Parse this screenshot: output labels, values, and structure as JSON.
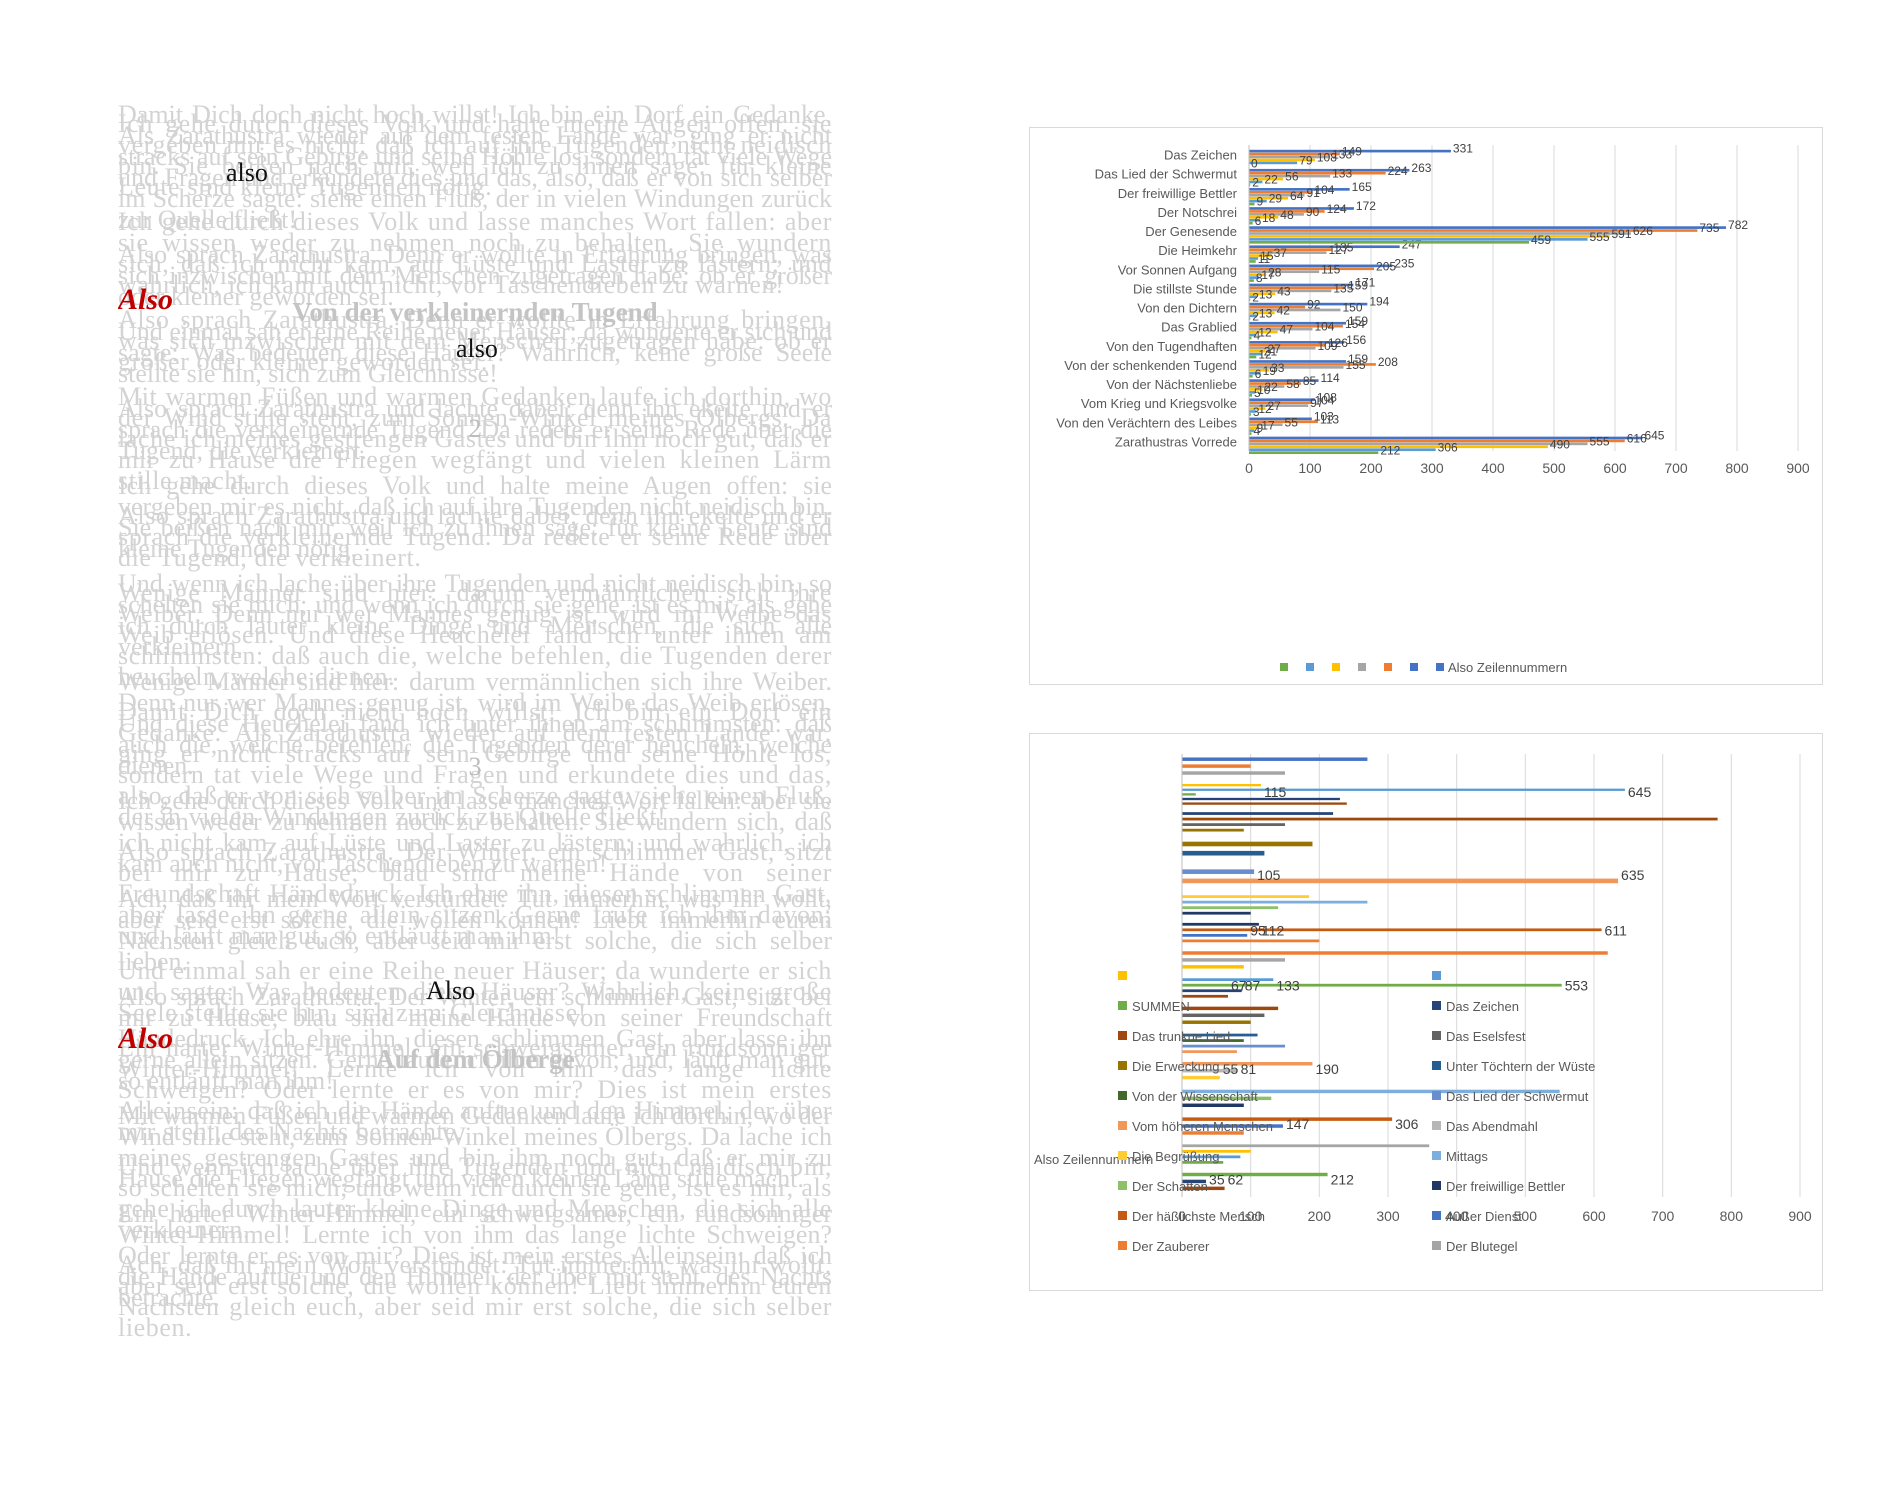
{
  "text_column": {
    "markers": [
      {
        "text": "also",
        "style": "black"
      },
      {
        "text": "Also",
        "style": "red"
      },
      {
        "text": "Von der verkleinernden Tugend",
        "style": "heading"
      },
      {
        "text": "also",
        "style": "black"
      },
      {
        "text": "2",
        "style": "num"
      },
      {
        "text": "3",
        "style": "num"
      },
      {
        "text": "Also",
        "style": "black"
      },
      {
        "text": "Also",
        "style": "red"
      },
      {
        "text": "Auf dem Ölberge",
        "style": "heading"
      }
    ],
    "paragraphs": [
      "Damit Dich doch nicht hoch willst! Ich bin ein Dorf ein Gedanke. Als Zarathustra wieder auf dem festen Lande war, ging er nicht stracks auf sein Gebirge und seine Höhle los, sondern tat viele Wege und Fragen und erkundete dies und das, also, daß er von sich selber im Scherze sagte: siehe einen Fluß, der in vielen Windungen zurück zur Quelle fließt!",
      "Also sprach Zarathustra. Denn er wollte in Erfahrung bringen, was sich inzwischen mit dem Menschen zugetragen habe: ob er größer oder kleiner geworden sei.",
      "Und einmal sah er eine Reihe neuer Häuser; da wunderte er sich und sagte: Was bedeuten diese Häuser? Wahrlich, keine große Seele stellte sie hin, sich zum Gleichnisse!",
      "Also sprach Zarathustra und lachte dabei; denn ihn ekelte und er sprach die verkleinernde Tugend. Da redete er seine Rede über die Tugend, die verkleinert.",
      "Ich gehe durch dieses Volk und halte meine Augen offen: sie vergeben mir es nicht, daß ich auf ihre Tugenden nicht neidisch bin. Sie beißen nach mir, weil ich zu ihnen sage: für kleine Leute sind kleine Tugenden nötig.",
      "Und wenn ich lache über ihre Tugenden und nicht neidisch bin, so schelten sie mich; und wenn ich durch sie gehe, ist es mir, als gehe ich durch lauter kleine Dinge und Menschen, die sich alle verkleinern.",
      "Wenige Männer sind hier: darum vermännlichen sich ihre Weiber. Denn nur wer Mannes genug ist, wird im Weibe das Weib erlösen. Und diese Heuchelei fand ich unter ihnen am schlimmsten: daß auch die, welche befehlen, die Tugenden derer heucheln, welche dienen.",
      "Ich gehe durch dieses Volk und lasse manches Wort fallen: aber sie wissen weder zu nehmen noch zu behalten. Sie wundern sich, daß ich nicht kam, auf Lüste und Laster zu lästern; und wahrlich, ich kam auch nicht, vor Taschendieben zu warnen!",
      "Ach, daß ihr mein Wort verstündet: Tut immerhin, was ihr wollt, aber seid erst solche, die wollen können! Liebt immerhin euren Nächsten gleich euch, aber seid mir erst solche, die sich selber lieben.",
      "Also sprach Zarathustra. Der Winter, ein schlimmer Gast, sitzt bei mir zu Hause; blau sind meine Hände von seiner Freundschaft Händedruck. Ich ehre ihn, diesen schlimmen Gast, aber lasse ihn gerne allein sitzen. Gerne laufe ich ihm davon; und, läuft man gut, so entläuft man ihm!",
      "Mit warmen Füßen und warmen Gedanken laufe ich dorthin, wo der Wind stille steht, zum Sonnen-Winkel meines Ölbergs. Da lache ich meines gestrengen Gastes und bin ihm noch gut, daß er mir zu Hause die Fliegen wegfängt und vielen kleinen Lärm stille macht.",
      "Ein harter Winter-Himmel, ein schweigsamer, ein rundsonniger Winter-Himmel! Lernte ich von ihm das lange lichte Schweigen? Oder lernte er es von mir? Dies ist mein erstes Alleinsein: daß ich die Hände auftue und den Himmel, der über mir steht, des Nachts betrachte."
    ]
  },
  "chart_top": {
    "legend": [
      "",
      "",
      "",
      "",
      "",
      "",
      "Also Zeilennummern"
    ]
  },
  "chart_bottom": {
    "legend": [
      "",
      "",
      "SUMMEN",
      "Das Zeichen",
      "Das trunkne Lied",
      "Das Eselsfest",
      "Die Erweckung",
      "Unter Töchtern der Wüste",
      "Von der Wissenschaft",
      "Das Lied der Schwermut",
      "Vom höheren Menschen",
      "Das Abendmahl",
      "Die Begrüßung",
      "Mittags",
      "Der Schatten",
      "Der freiwillige Bettler",
      "Der häßlichste Mensch",
      "Außer Dienst",
      "Der Zauberer",
      "Der Blutegel"
    ],
    "y_axis_title": "Also Zeilennummern"
  },
  "colors": {
    "text_grey": "#d3d3d3",
    "also_red": "#c00000",
    "grid": "#d9d9d9",
    "axis_text": "#595959",
    "palette": [
      "#4472c4",
      "#ed7d31",
      "#a5a5a5",
      "#ffc000",
      "#5b9bd5",
      "#70ad47",
      "#264478",
      "#9e480e",
      "#636363",
      "#997300",
      "#255e91",
      "#43682b",
      "#698ed0",
      "#f1975a",
      "#b7b7b7",
      "#ffcd33",
      "#7cafdd",
      "#8cc168",
      "#1f3864",
      "#c55a11"
    ]
  },
  "chart_data": [
    {
      "type": "bar",
      "orientation": "horizontal",
      "xlim": [
        0,
        900
      ],
      "xticks": [
        "0",
        "100",
        "200",
        "300",
        "400",
        "500",
        "600",
        "700",
        "800",
        "900"
      ],
      "grid": true,
      "legend_position": "bottom",
      "categories": [
        "Zarathustras Vorrede",
        "Von den Verächtern des Leibes",
        "Vom Krieg und Kriegsvolke",
        "Von der Nächstenliebe",
        "Von der schenkenden Tugend",
        "Von den Tugendhaften",
        "Das Grablied",
        "Von den Dichtern",
        "Die stillste Stunde",
        "Vor Sonnen Aufgang",
        "Die Heimkehr",
        "Der Genesende",
        "Der Notschrei",
        "Der freiwillige Bettler",
        "Das Lied der Schwermut",
        "Das Zeichen"
      ],
      "category_labels_shown": [
        "Zarathustras Vorrede",
        "Von den Verächtern des Leibes",
        "Vom Krieg und Kriegsvolke",
        "Von der Nächstenliebe",
        "Von der schenkenden Tugend",
        "Von den Tugendhaften",
        "Das Grablied",
        "Von den Dichtern",
        "Die stillste Stunde",
        "Vor Sonnen Aufgang",
        "Die Heimkehr",
        "Der Genesende",
        "Der Notschrei",
        "Der freiwillige Bettler",
        "Das Lied der Schwermut",
        "Das Zeichen"
      ],
      "series": [
        {
          "name": "Also Zeilennummern",
          "values": [
            645,
            103,
            108,
            114,
            159,
            156,
            159,
            194,
            171,
            235,
            247,
            782,
            172,
            165,
            263,
            331
          ]
        },
        {
          "values": [
            616,
            113,
            104,
            85,
            208,
            126,
            154,
            92,
            159,
            205,
            135,
            735,
            124,
            104,
            224,
            149
          ]
        },
        {
          "values": [
            555,
            55,
            97,
            58,
            155,
            109,
            104,
            150,
            135,
            115,
            127,
            626,
            90,
            91,
            133,
            133
          ]
        },
        {
          "values": [
            490,
            17,
            27,
            22,
            33,
            27,
            47,
            42,
            43,
            28,
            37,
            591,
            48,
            64,
            56,
            108
          ]
        },
        {
          "values": [
            306,
            9,
            12,
            10,
            19,
            21,
            12,
            13,
            13,
            17,
            15,
            555,
            18,
            29,
            22,
            79
          ]
        },
        {
          "values": [
            212,
            4,
            3,
            5,
            6,
            12,
            4,
            2,
            2,
            8,
            11,
            459,
            6,
            9,
            2,
            0
          ]
        }
      ],
      "data_labels": [
        "0",
        "108",
        "133",
        "149",
        "331",
        "224",
        "263",
        "165",
        "172",
        "7",
        "177",
        "198",
        "371",
        "270",
        "459",
        "555",
        "591",
        "626",
        "735",
        "782",
        "235",
        "194",
        "159",
        "208",
        "14",
        "108",
        "103",
        "212",
        "306",
        "490",
        "555",
        "616",
        "645"
      ]
    },
    {
      "type": "bar",
      "orientation": "horizontal",
      "xlim": [
        0,
        900
      ],
      "xticks": [
        "0",
        "100",
        "200",
        "300",
        "400",
        "500",
        "600",
        "700",
        "800",
        "900"
      ],
      "grid": true,
      "legend_position": "left",
      "ylabel": "Also Zeilennummern",
      "rows": [
        {
          "values": [
            270,
            100,
            150
          ]
        },
        {
          "values": [
            115,
            645,
            20,
            230,
            240
          ]
        },
        {
          "values": [
            220,
            780,
            150,
            90
          ]
        },
        {
          "values": [
            190,
            120
          ]
        },
        {
          "values": [
            105,
            635
          ]
        },
        {
          "values": [
            185,
            270,
            140,
            100
          ]
        },
        {
          "values": [
            112,
            611,
            95,
            200
          ]
        },
        {
          "values": [
            620,
            150,
            90
          ]
        },
        {
          "values": [
            133,
            553,
            87,
            67
          ]
        },
        {
          "values": [
            140,
            120,
            100
          ]
        },
        {
          "values": [
            110,
            90,
            150,
            80
          ]
        },
        {
          "values": [
            190,
            81,
            55
          ]
        },
        {
          "values": [
            550,
            130,
            90
          ]
        },
        {
          "values": [
            306,
            147,
            90
          ]
        },
        {
          "values": [
            360,
            100,
            85,
            60
          ]
        },
        {
          "values": [
            212,
            35,
            62
          ]
        }
      ],
      "data_labels": [
        "115",
        "645",
        "105",
        "635",
        "95",
        "112",
        "611",
        "87",
        "67",
        "133",
        "553",
        "190",
        "55",
        "81",
        "306",
        "147",
        "62",
        "35",
        "212"
      ]
    }
  ]
}
